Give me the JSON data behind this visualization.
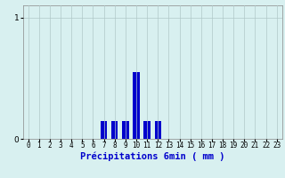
{
  "hours": [
    0,
    1,
    2,
    3,
    4,
    5,
    6,
    7,
    8,
    9,
    10,
    11,
    12,
    13,
    14,
    15,
    16,
    17,
    18,
    19,
    20,
    21,
    22,
    23
  ],
  "values": [
    0,
    0,
    0,
    0,
    0,
    0,
    0,
    0.15,
    0.15,
    0.15,
    0.55,
    0.15,
    0.15,
    0,
    0,
    0,
    0,
    0,
    0,
    0,
    0,
    0,
    0,
    0
  ],
  "bar_color": "#0000cc",
  "bg_color": "#d8f0f0",
  "grid_color": "#b0c8c8",
  "xlabel": "Précipitations 6min ( mm )",
  "xlabel_color": "#0000cc",
  "yticks": [
    0,
    1
  ],
  "ylim": [
    0,
    1.1
  ],
  "xlim": [
    -0.5,
    23.5
  ],
  "tick_fontsize": 5.5,
  "xlabel_fontsize": 7.5
}
